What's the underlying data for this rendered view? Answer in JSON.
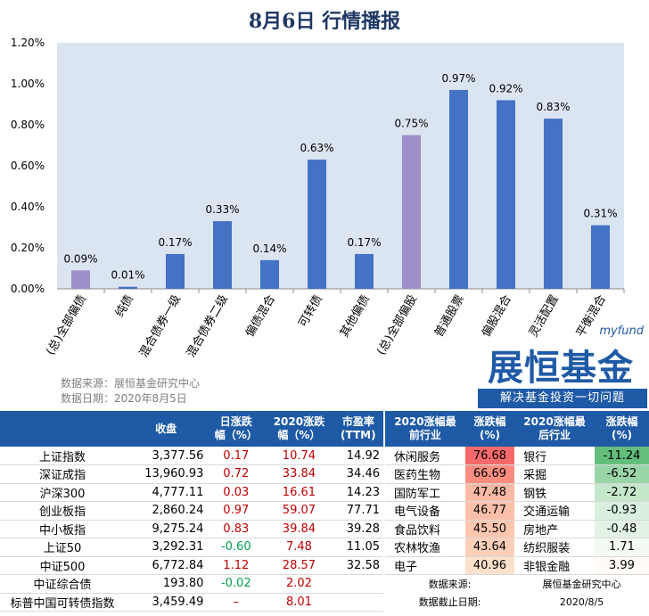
{
  "title": "8月6日  行情播报",
  "colors": {
    "bar_default": "#4472c4",
    "bar_highlight": "#9e8fc9",
    "plot_bg": "#dbe5f1",
    "header": "#1f5aa6"
  },
  "chart_data": {
    "type": "bar",
    "categories": [
      "(总)全部偏债",
      "纯债",
      "混合债券一级",
      "混合债券二级",
      "偏债混合",
      "可转债",
      "其他偏债",
      "(总)全部偏股",
      "普通股票",
      "偏股混合",
      "灵活配置",
      "平衡混合"
    ],
    "values": [
      0.09,
      0.01,
      0.17,
      0.33,
      0.14,
      0.63,
      0.17,
      0.75,
      0.97,
      0.92,
      0.83,
      0.31
    ],
    "data_labels": [
      "0.09%",
      "0.01%",
      "0.17%",
      "0.33%",
      "0.14%",
      "0.63%",
      "0.17%",
      "0.75%",
      "0.97%",
      "0.92%",
      "0.83%",
      "0.31%"
    ],
    "highlight": [
      true,
      false,
      false,
      false,
      false,
      false,
      false,
      true,
      false,
      false,
      false,
      false
    ],
    "ylim": [
      0,
      1.2
    ],
    "yticks": [
      "0.00%",
      "0.20%",
      "0.40%",
      "0.60%",
      "0.80%",
      "1.00%",
      "1.20%"
    ],
    "grid": false,
    "xlabel": "",
    "ylabel": ""
  },
  "chart_source": {
    "line1": "数据来源：展恒基金研究中心",
    "line2": "数据日期：2020年8月5日"
  },
  "logo": {
    "url": "myfund",
    "name": "展恒基金",
    "slogan": "解决基金投资一切问题"
  },
  "index_table": {
    "headers": [
      "",
      "收盘",
      "日涨跌\n幅（%）",
      "2020涨跌\n幅（%）",
      "市盈率\n(TTM)"
    ],
    "rows": [
      {
        "name": "上证指数",
        "close": "3,377.56",
        "day": "0.17",
        "day_color": "red",
        "ytd": "10.74",
        "ytd_color": "red",
        "pe": "14.92"
      },
      {
        "name": "深证成指",
        "close": "13,960.93",
        "day": "0.72",
        "day_color": "red",
        "ytd": "33.84",
        "ytd_color": "red",
        "pe": "34.46"
      },
      {
        "name": "沪深300",
        "close": "4,777.11",
        "day": "0.03",
        "day_color": "red",
        "ytd": "16.61",
        "ytd_color": "red",
        "pe": "14.23"
      },
      {
        "name": "创业板指",
        "close": "2,860.24",
        "day": "0.97",
        "day_color": "red",
        "ytd": "59.07",
        "ytd_color": "red",
        "pe": "77.71"
      },
      {
        "name": "中小板指",
        "close": "9,275.24",
        "day": "0.83",
        "day_color": "red",
        "ytd": "39.84",
        "ytd_color": "red",
        "pe": "39.28"
      },
      {
        "name": "上证50",
        "close": "3,292.31",
        "day": "-0.60",
        "day_color": "green",
        "ytd": "7.48",
        "ytd_color": "red",
        "pe": "11.05"
      },
      {
        "name": "中证500",
        "close": "6,772.84",
        "day": "1.12",
        "day_color": "red",
        "ytd": "28.57",
        "ytd_color": "red",
        "pe": "32.58"
      },
      {
        "name": "中证综合债",
        "close": "193.80",
        "day": "-0.02",
        "day_color": "green",
        "ytd": "2.02",
        "ytd_color": "red",
        "pe": ""
      },
      {
        "name": "标普中国可转债指数",
        "close": "3,459.49",
        "day": "–",
        "day_color": "red",
        "ytd": "8.01",
        "ytd_color": "red",
        "pe": ""
      }
    ]
  },
  "sector_table": {
    "headers": [
      "2020涨幅最\n前行业",
      "涨跌幅\n(%)",
      "2020涨幅最\n后行业",
      "涨跌幅\n(%)"
    ],
    "rows": [
      {
        "top": "休闲服务",
        "top_val": "76.68",
        "top_bg": "#f8696b",
        "bottom": "银行",
        "bottom_val": "-11.24",
        "bottom_bg": "#63be7b"
      },
      {
        "top": "医药生物",
        "top_val": "66.69",
        "top_bg": "#f98e80",
        "bottom": "采掘",
        "bottom_val": "-6.52",
        "bottom_bg": "#9ad5a8"
      },
      {
        "top": "国防军工",
        "top_val": "47.48",
        "top_bg": "#fbbaa5",
        "bottom": "钢铁",
        "bottom_val": "-2.72",
        "bottom_bg": "#c5e8cd"
      },
      {
        "top": "电气设备",
        "top_val": "46.77",
        "top_bg": "#fcc0aa",
        "bottom": "交通运输",
        "bottom_val": "-0.93",
        "bottom_bg": "#d9f0de"
      },
      {
        "top": "食品饮料",
        "top_val": "45.50",
        "top_bg": "#fcc6af",
        "bottom": "房地产",
        "bottom_val": "-0.48",
        "bottom_bg": "#e2f3e6"
      },
      {
        "top": "农林牧渔",
        "top_val": "43.64",
        "top_bg": "#fcd0b8",
        "bottom": "纺织服装",
        "bottom_val": "1.71",
        "bottom_bg": "#f3faf4"
      },
      {
        "top": "电子",
        "top_val": "40.96",
        "top_bg": "#fde1cc",
        "bottom": "非银金融",
        "bottom_val": "3.99",
        "bottom_bg": "#fffbf6"
      }
    ],
    "source": {
      "label1": "数据来源:",
      "value1": "展恒基金研究中心",
      "label2": "数据截止日期:",
      "value2": "2020/8/5"
    }
  }
}
